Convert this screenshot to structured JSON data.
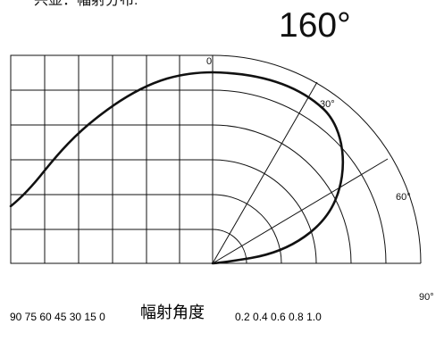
{
  "header": {
    "top_partial_title": "兴显：幅射分布:",
    "main_angle": "160°"
  },
  "angle_ticks": {
    "zero": "0",
    "thirty": "30°",
    "sixty": "60°",
    "ninety": "90°"
  },
  "bottom_axis": {
    "left_ticks": "90 75   60 45 30 15 0",
    "label": "幅射角度",
    "right_ticks": "0.2  0.4   0.6 0.8 1.0"
  },
  "colors": {
    "line": "#000000",
    "grid": "#111111",
    "background": "#ffffff"
  }
}
